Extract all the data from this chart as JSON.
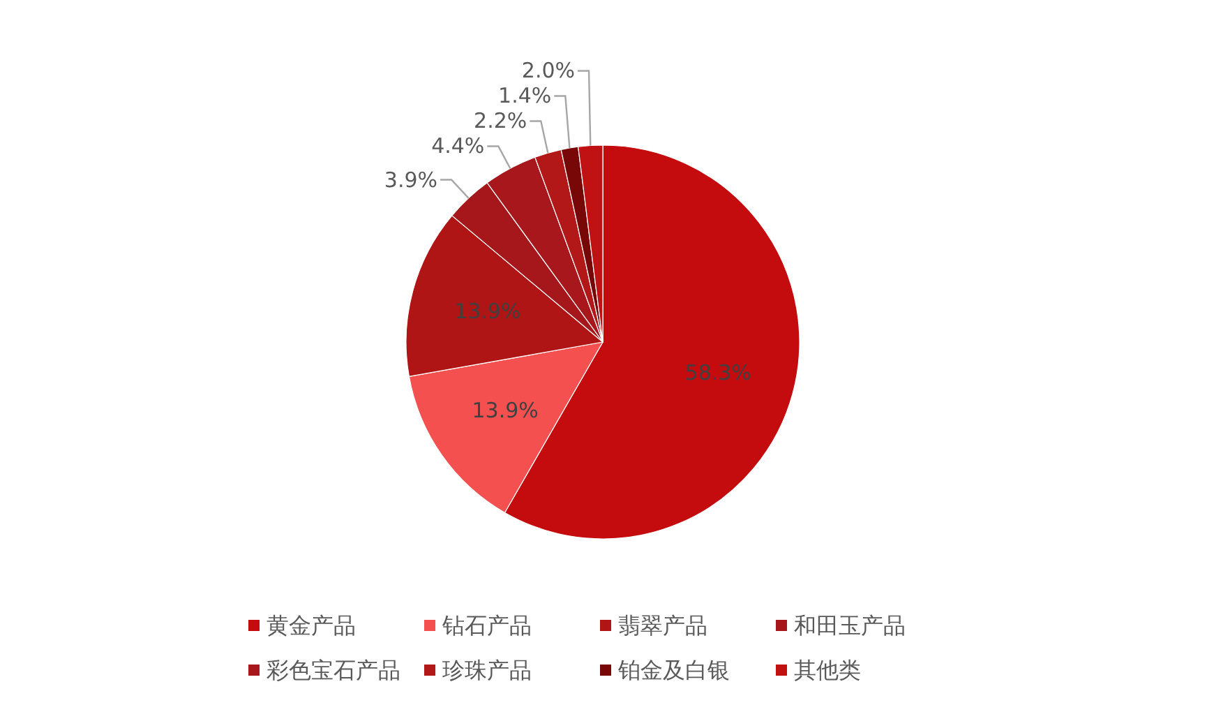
{
  "chart_data": {
    "type": "pie",
    "categories": [
      "黄金产品",
      "钻石产品",
      "翡翠产品",
      "和田玉产品",
      "彩色宝石产品",
      "珍珠产品",
      "铂金及白银",
      "其他类"
    ],
    "values": [
      58.3,
      13.9,
      13.9,
      3.9,
      4.4,
      2.2,
      1.4,
      2.0
    ],
    "value_labels": [
      "58.3%",
      "13.9%",
      "13.9%",
      "3.9%",
      "4.4%",
      "2.2%",
      "1.4%",
      "2.0%"
    ],
    "colors": [
      "#c40c0f",
      "#f45050",
      "#b01515",
      "#a5171a",
      "#a8171b",
      "#b31818",
      "#780808",
      "#c01212"
    ],
    "legend": "bottom"
  }
}
